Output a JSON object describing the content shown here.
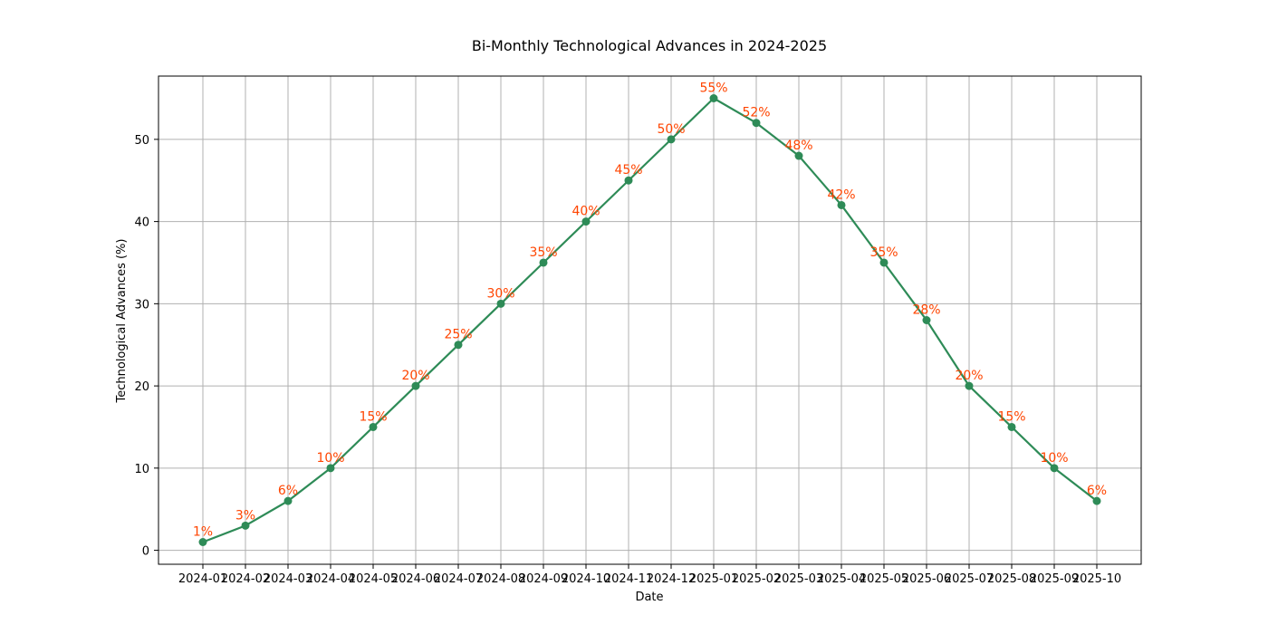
{
  "chart_data": {
    "type": "line",
    "title": "Bi-Monthly Technological Advances in 2024-2025",
    "xlabel": "Date",
    "ylabel": "Technological Advances (%)",
    "x": [
      "2024-01",
      "2024-02",
      "2024-03",
      "2024-04",
      "2024-05",
      "2024-06",
      "2024-07",
      "2024-08",
      "2024-09",
      "2024-10",
      "2024-11",
      "2024-12",
      "2025-01",
      "2025-02",
      "2025-03",
      "2025-04",
      "2025-05",
      "2025-06",
      "2025-07",
      "2025-08",
      "2025-09",
      "2025-10"
    ],
    "series": [
      {
        "values": [
          1,
          3,
          6,
          10,
          15,
          20,
          25,
          30,
          35,
          40,
          45,
          50,
          55,
          52,
          48,
          42,
          35,
          28,
          20,
          15,
          10,
          6
        ],
        "labels": [
          "1%",
          "3%",
          "6%",
          "10%",
          "15%",
          "20%",
          "25%",
          "30%",
          "35%",
          "40%",
          "45%",
          "50%",
          "55%",
          "52%",
          "48%",
          "42%",
          "35%",
          "28%",
          "20%",
          "15%",
          "10%",
          "6%"
        ],
        "color": "#2e8b57",
        "marker": "circle"
      }
    ],
    "yticks": [
      0,
      10,
      20,
      30,
      40,
      50
    ],
    "ylim": [
      -1.7,
      57.7
    ],
    "grid": true,
    "label_color": "#ff4500"
  }
}
